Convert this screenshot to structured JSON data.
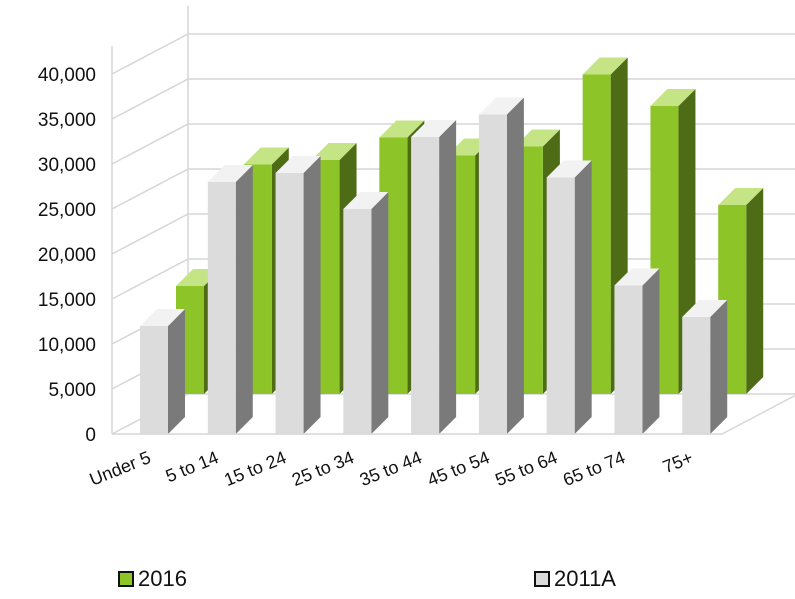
{
  "chart_data": {
    "type": "bar",
    "title": "",
    "xlabel": "",
    "ylabel": "",
    "categories": [
      "Under 5",
      "5 to 14",
      "15 to 24",
      "25 to 34",
      "35 to 44",
      "45 to 54",
      "55 to 64",
      "65 to 74",
      "75+"
    ],
    "series": [
      {
        "name": "2016",
        "values": [
          12000,
          25500,
          26000,
          28500,
          26500,
          27500,
          35500,
          32000,
          21000
        ],
        "color": "#8dc428"
      },
      {
        "name": "2011A",
        "values": [
          12000,
          28000,
          29000,
          25000,
          33000,
          35500,
          28500,
          16500,
          13000
        ],
        "color": "#d4d4d4"
      }
    ],
    "yticks": [
      "0",
      "5,000",
      "10,000",
      "15,000",
      "20,000",
      "25,000",
      "30,000",
      "35,000",
      "40,000"
    ],
    "ylim": [
      0,
      40000
    ],
    "grid": true,
    "three_d": true,
    "legend_position": "bottom"
  }
}
